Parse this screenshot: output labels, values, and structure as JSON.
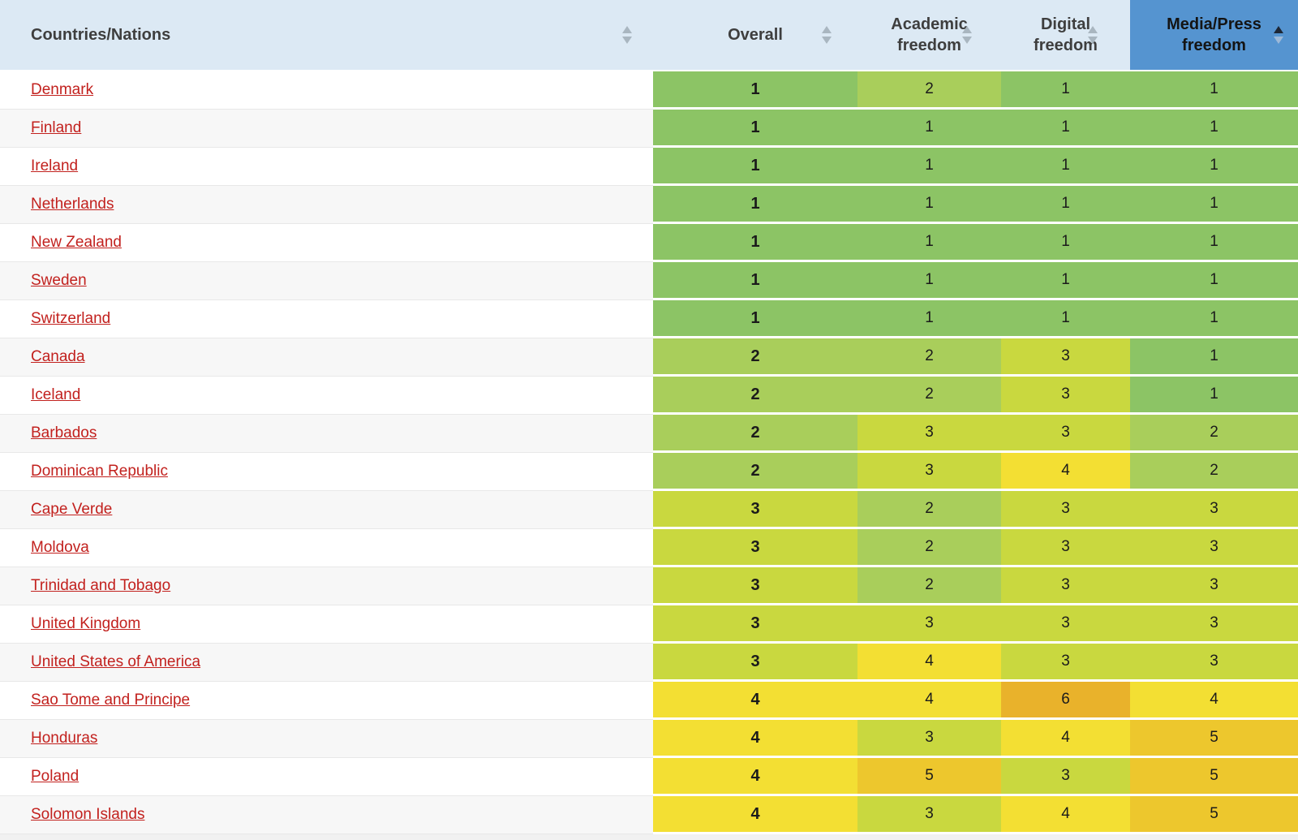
{
  "table": {
    "columns": [
      {
        "key": "country",
        "label": "Countries/Nations",
        "sorted": "none"
      },
      {
        "key": "overall",
        "label": "Overall",
        "sorted": "none"
      },
      {
        "key": "academic",
        "label": "Academic freedom",
        "sorted": "none"
      },
      {
        "key": "digital",
        "label": "Digital freedom",
        "sorted": "none"
      },
      {
        "key": "media",
        "label": "Media/Press freedom",
        "sorted": "asc"
      }
    ],
    "rows": [
      {
        "country": "Denmark",
        "overall": 1,
        "academic": 2,
        "digital": 1,
        "media": 1
      },
      {
        "country": "Finland",
        "overall": 1,
        "academic": 1,
        "digital": 1,
        "media": 1
      },
      {
        "country": "Ireland",
        "overall": 1,
        "academic": 1,
        "digital": 1,
        "media": 1
      },
      {
        "country": "Netherlands",
        "overall": 1,
        "academic": 1,
        "digital": 1,
        "media": 1
      },
      {
        "country": "New Zealand",
        "overall": 1,
        "academic": 1,
        "digital": 1,
        "media": 1
      },
      {
        "country": "Sweden",
        "overall": 1,
        "academic": 1,
        "digital": 1,
        "media": 1
      },
      {
        "country": "Switzerland",
        "overall": 1,
        "academic": 1,
        "digital": 1,
        "media": 1
      },
      {
        "country": "Canada",
        "overall": 2,
        "academic": 2,
        "digital": 3,
        "media": 1
      },
      {
        "country": "Iceland",
        "overall": 2,
        "academic": 2,
        "digital": 3,
        "media": 1
      },
      {
        "country": "Barbados",
        "overall": 2,
        "academic": 3,
        "digital": 3,
        "media": 2
      },
      {
        "country": "Dominican Republic",
        "overall": 2,
        "academic": 3,
        "digital": 4,
        "media": 2
      },
      {
        "country": "Cape Verde",
        "overall": 3,
        "academic": 2,
        "digital": 3,
        "media": 3
      },
      {
        "country": "Moldova",
        "overall": 3,
        "academic": 2,
        "digital": 3,
        "media": 3
      },
      {
        "country": "Trinidad and Tobago",
        "overall": 3,
        "academic": 2,
        "digital": 3,
        "media": 3
      },
      {
        "country": "United Kingdom",
        "overall": 3,
        "academic": 3,
        "digital": 3,
        "media": 3
      },
      {
        "country": "United States of America",
        "overall": 3,
        "academic": 4,
        "digital": 3,
        "media": 3
      },
      {
        "country": "Sao Tome and Principe",
        "overall": 4,
        "academic": 4,
        "digital": 6,
        "media": 4
      },
      {
        "country": "Honduras",
        "overall": 4,
        "academic": 3,
        "digital": 4,
        "media": 5
      },
      {
        "country": "Poland",
        "overall": 4,
        "academic": 5,
        "digital": 3,
        "media": 5
      },
      {
        "country": "Solomon Islands",
        "overall": 4,
        "academic": 3,
        "digital": 4,
        "media": 5
      }
    ],
    "value_colors": {
      "1": "#8cc465",
      "2": "#a9ce5b",
      "3": "#c9d83f",
      "4": "#f3df33",
      "5": "#edc72d",
      "6": "#e9b22b"
    }
  },
  "colors": {
    "header_bg": "#dce9f4",
    "active_header_bg": "#5594d0",
    "link_red": "#c2211e",
    "row_alt_gray": "#f7f7f7"
  }
}
